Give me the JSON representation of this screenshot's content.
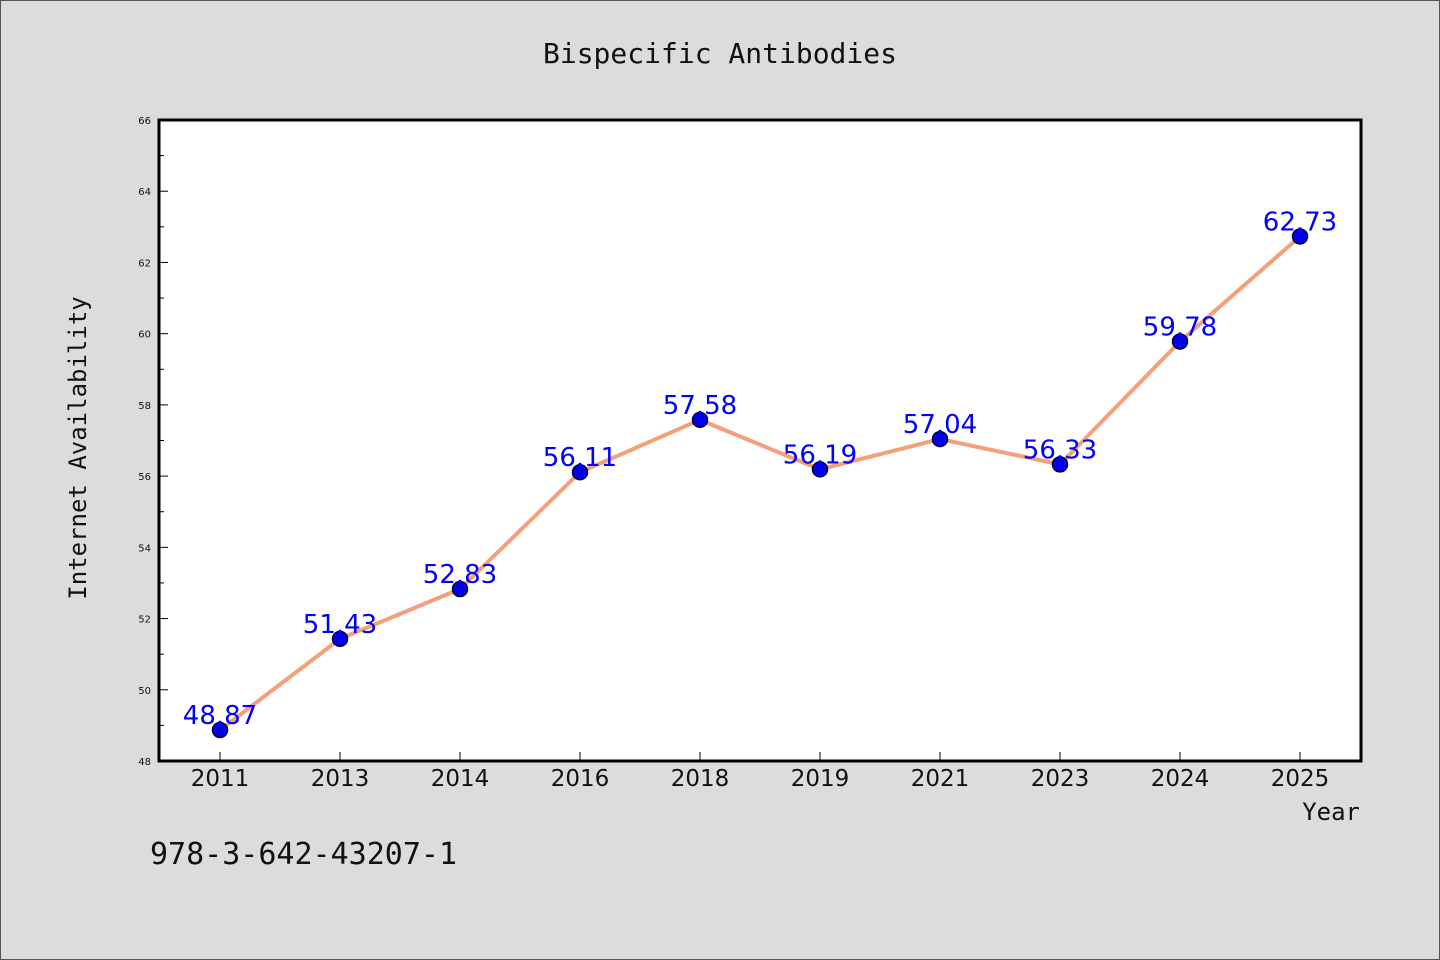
{
  "chart_data": {
    "type": "line",
    "title": "Bispecific Antibodies",
    "xlabel": "Year",
    "ylabel": "Internet Availability",
    "categories": [
      "2011",
      "2013",
      "2014",
      "2016",
      "2018",
      "2019",
      "2021",
      "2023",
      "2024",
      "2025"
    ],
    "values": [
      48.87,
      51.43,
      52.83,
      56.11,
      57.58,
      56.19,
      57.04,
      56.33,
      59.78,
      62.73
    ],
    "data_labels": [
      "48.87",
      "51.43",
      "52.83",
      "56.11",
      "57.58",
      "56.19",
      "57.04",
      "56.33",
      "59.78",
      "62.73"
    ],
    "ylim": [
      48,
      66
    ],
    "yticks": [
      "48",
      "50",
      "52",
      "54",
      "56",
      "58",
      "60",
      "62",
      "64",
      "66"
    ],
    "grid": false,
    "legend": "none",
    "colors": {
      "line": "#f4a07a",
      "marker": "#0000ee",
      "marker_edge": "#000033",
      "label": "#0000ff",
      "background": "#dcdcdc",
      "plot_background": "#ffffff"
    }
  },
  "annotation": "978-3-642-43207-1"
}
